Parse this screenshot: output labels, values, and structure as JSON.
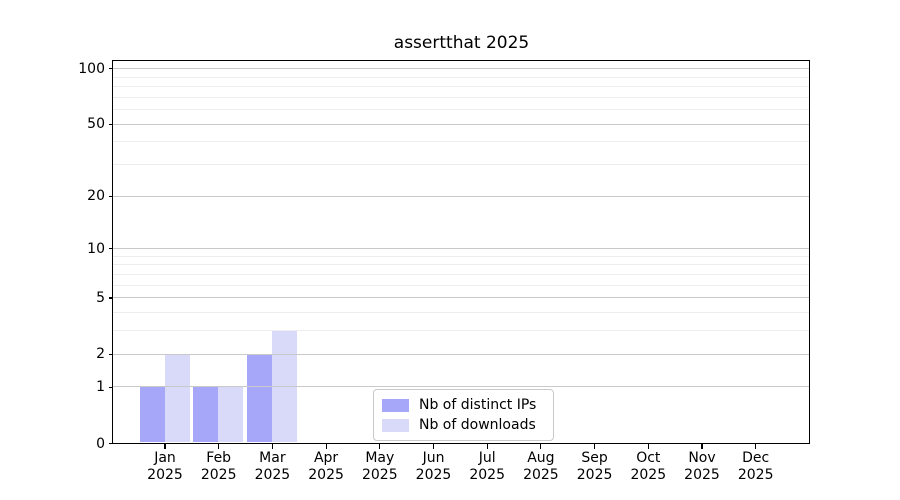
{
  "chart_data": {
    "type": "bar",
    "title": "assertthat 2025",
    "categories": [
      "Jan",
      "Feb",
      "Mar",
      "Apr",
      "May",
      "Jun",
      "Jul",
      "Aug",
      "Sep",
      "Oct",
      "Nov",
      "Dec"
    ],
    "x_sublabel": "2025",
    "series": [
      {
        "name": "Nb of distinct IPs",
        "color": "#a7a7f9",
        "values": [
          1,
          1,
          2,
          0,
          0,
          0,
          0,
          0,
          0,
          0,
          0,
          0
        ]
      },
      {
        "name": "Nb of downloads",
        "color": "#d9d9fa",
        "values": [
          2,
          1,
          3,
          0,
          0,
          0,
          0,
          0,
          0,
          0,
          0,
          0
        ]
      }
    ],
    "yscale": "log1p",
    "y_ticks": [
      0,
      1,
      2,
      5,
      10,
      20,
      50,
      100
    ],
    "y_minor_gridlines": [
      3,
      4,
      6,
      7,
      8,
      9,
      30,
      40,
      60,
      70,
      80,
      90
    ],
    "ylim": [
      0,
      110
    ],
    "grid": true,
    "grid_above_bars": true,
    "legend_position": "lower center"
  },
  "colors": {
    "major_grid": "#c9c9c9",
    "minor_grid": "#ededed",
    "spine": "#000000",
    "background": "#ffffff"
  }
}
